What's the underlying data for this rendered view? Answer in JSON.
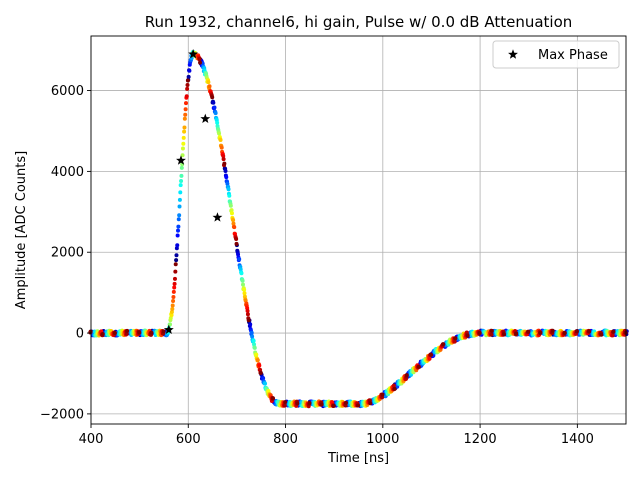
{
  "chart_data": {
    "type": "scatter",
    "title": "Run 1932, channel6, hi gain, Pulse w/ 0.0 dB Attenuation",
    "xlabel": "Time [ns]",
    "ylabel": "Amplitude [ADC Counts]",
    "xlim": [
      400,
      1500
    ],
    "ylim": [
      -2250,
      7350
    ],
    "xticks": [
      400,
      600,
      800,
      1000,
      1200,
      1400
    ],
    "yticks": [
      -2000,
      0,
      2000,
      4000,
      6000
    ],
    "ytick_labels": [
      "−2000",
      "0",
      "2000",
      "4000",
      "6000"
    ],
    "grid": true,
    "colormap": "jet",
    "legend": {
      "position": "upper right",
      "entries": [
        "Max Phase"
      ]
    },
    "pulse_model": {
      "baseline": 0,
      "rise_start_ns": 555,
      "peak_time_ns": 610,
      "peak_amplitude": 6900,
      "undershoot_amplitude": -1750,
      "undershoot_start_ns": 790,
      "undershoot_end_ns": 960,
      "recovery_end_ns": 1200,
      "noise_adc": 60,
      "sample_period_ns": 25,
      "n_phases": 32
    },
    "max_phase_series": {
      "name": "Max Phase",
      "marker": "star",
      "color": "#000000",
      "x": [
        560,
        585,
        610,
        635,
        660
      ],
      "y": [
        80,
        4270,
        6900,
        5300,
        2860
      ]
    }
  }
}
